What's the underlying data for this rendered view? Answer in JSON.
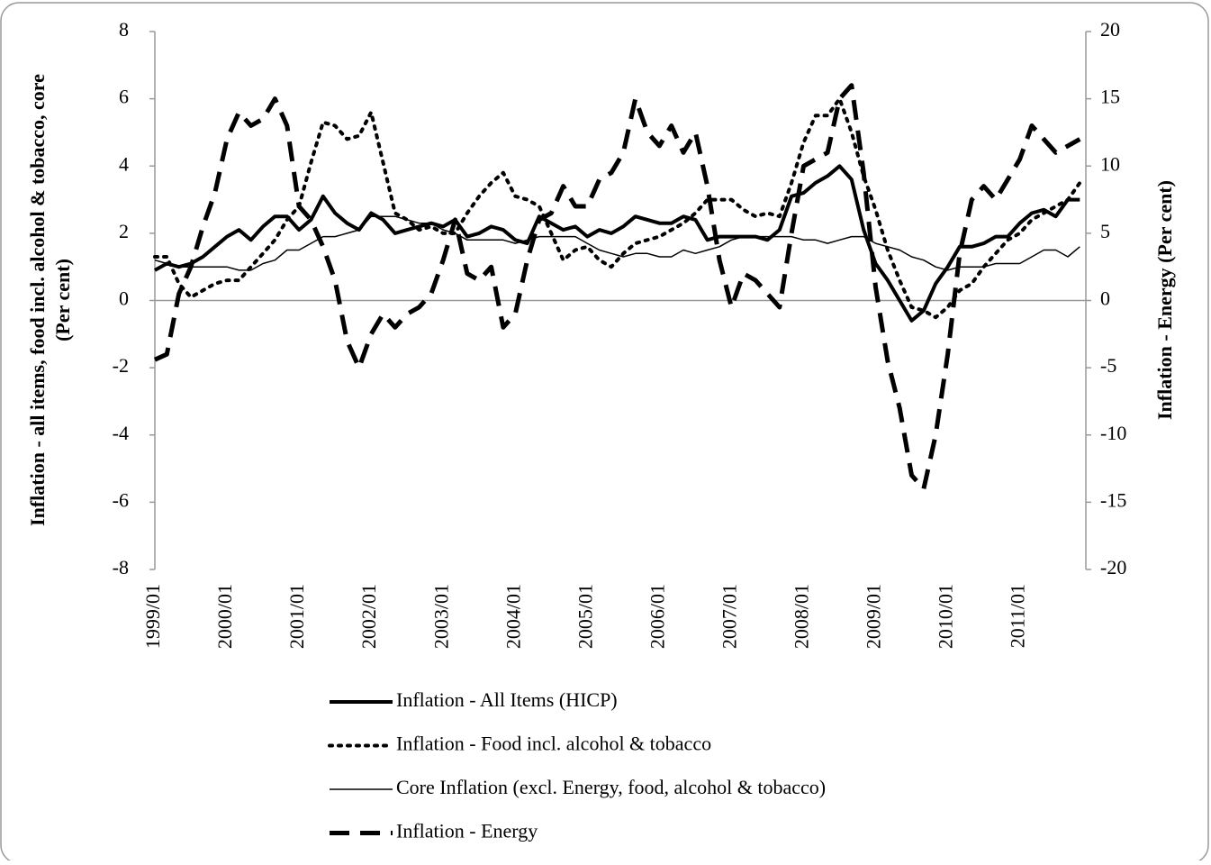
{
  "chart_data": {
    "type": "line",
    "ylabel": [
      "Inflation - all items, food incl. alcohol & tobacco, core",
      "(Per cent)"
    ],
    "y2label": "Inflation - Energy (Per cent)",
    "categories": [
      "1999/01",
      null,
      null,
      null,
      null,
      null,
      "2000/01",
      null,
      null,
      null,
      null,
      null,
      "2001/01",
      null,
      null,
      null,
      null,
      null,
      "2002/01",
      null,
      null,
      null,
      null,
      null,
      "2003/01",
      null,
      null,
      null,
      null,
      null,
      "2004/01",
      null,
      null,
      null,
      null,
      null,
      "2005/01",
      null,
      null,
      null,
      null,
      null,
      "2006/01",
      null,
      null,
      null,
      null,
      null,
      "2007/01",
      null,
      null,
      null,
      null,
      null,
      "2008/01",
      null,
      null,
      null,
      null,
      null,
      "2009/01",
      null,
      null,
      null,
      null,
      null,
      "2010/01",
      null,
      null,
      null,
      null,
      null,
      "2011/01",
      null,
      null,
      null,
      null,
      null
    ],
    "ylim": [
      -8,
      8
    ],
    "yticks": [
      -8,
      -6,
      -4,
      -2,
      0,
      2,
      4,
      6,
      8
    ],
    "y2lim": [
      -20,
      20
    ],
    "y2ticks": [
      -20,
      -15,
      -10,
      -5,
      0,
      5,
      10,
      15,
      20
    ],
    "series": [
      {
        "name": "Inflation - All Items (HICP)",
        "color": "#000000",
        "style": "solid",
        "width": 4,
        "values": [
          0.9,
          1.1,
          1.0,
          1.1,
          1.3,
          1.6,
          1.9,
          2.1,
          1.8,
          2.2,
          2.5,
          2.5,
          2.1,
          2.4,
          3.1,
          2.6,
          2.3,
          2.1,
          2.6,
          2.4,
          2.0,
          2.1,
          2.2,
          2.3,
          2.2,
          2.4,
          1.9,
          2.0,
          2.2,
          2.1,
          1.8,
          1.7,
          2.5,
          2.3,
          2.1,
          2.2,
          1.9,
          2.1,
          2.0,
          2.2,
          2.5,
          2.4,
          2.3,
          2.3,
          2.5,
          2.4,
          1.8,
          1.9,
          1.9,
          1.9,
          1.9,
          1.8,
          2.1,
          3.1,
          3.2,
          3.5,
          3.7,
          4.0,
          3.6,
          2.1,
          1.1,
          0.6,
          0.0,
          -0.6,
          -0.3,
          0.5,
          1.0,
          1.6,
          1.6,
          1.7,
          1.9,
          1.9,
          2.3,
          2.6,
          2.7,
          2.5,
          3.0,
          3.0
        ]
      },
      {
        "name": "Inflation - Food incl. alcohol & tobacco",
        "color": "#000000",
        "style": "dotted",
        "width": 4,
        "values": [
          1.3,
          1.3,
          0.5,
          0.1,
          0.3,
          0.5,
          0.6,
          0.6,
          1.0,
          1.4,
          1.8,
          2.4,
          2.8,
          4.1,
          5.3,
          5.2,
          4.8,
          4.9,
          5.6,
          4.1,
          2.6,
          2.4,
          2.1,
          2.2,
          2.0,
          2.0,
          2.6,
          3.1,
          3.5,
          3.8,
          3.1,
          3.0,
          2.8,
          2.0,
          1.2,
          1.5,
          1.6,
          1.2,
          1.0,
          1.4,
          1.7,
          1.8,
          1.9,
          2.1,
          2.3,
          2.6,
          3.0,
          3.0,
          3.0,
          2.7,
          2.5,
          2.6,
          2.5,
          3.5,
          4.7,
          5.5,
          5.5,
          6.0,
          5.0,
          3.7,
          2.7,
          1.5,
          0.6,
          -0.2,
          -0.3,
          -0.5,
          -0.2,
          0.3,
          0.5,
          1.0,
          1.4,
          1.8,
          2.0,
          2.4,
          2.6,
          2.8,
          3.0,
          3.5
        ]
      },
      {
        "name": "Core Inflation (excl. Energy, food, alcohol & tobacco)",
        "color": "#000000",
        "style": "solid",
        "width": 1.5,
        "values": [
          1.2,
          1.1,
          1.0,
          1.0,
          1.0,
          1.0,
          1.0,
          0.9,
          0.9,
          1.1,
          1.2,
          1.5,
          1.5,
          1.7,
          1.9,
          1.9,
          2.0,
          2.1,
          2.5,
          2.5,
          2.5,
          2.4,
          2.3,
          2.3,
          2.1,
          2.0,
          1.8,
          1.8,
          1.8,
          1.8,
          1.7,
          1.8,
          1.9,
          1.9,
          1.9,
          1.9,
          1.7,
          1.5,
          1.4,
          1.3,
          1.4,
          1.4,
          1.3,
          1.3,
          1.5,
          1.4,
          1.5,
          1.6,
          1.8,
          1.9,
          1.9,
          1.9,
          1.9,
          1.9,
          1.8,
          1.8,
          1.7,
          1.8,
          1.9,
          1.9,
          1.7,
          1.6,
          1.5,
          1.3,
          1.2,
          1.0,
          0.9,
          1.0,
          1.0,
          1.0,
          1.1,
          1.1,
          1.1,
          1.3,
          1.5,
          1.5,
          1.3,
          1.6
        ]
      },
      {
        "name": "Inflation - Energy",
        "color": "#000000",
        "style": "dashed",
        "width": 5,
        "axis": "y2",
        "values": [
          -4.4,
          -4.0,
          0.5,
          2.5,
          5.5,
          8.0,
          12.0,
          14.0,
          13.0,
          13.5,
          15.0,
          13.0,
          7.0,
          6.0,
          4.0,
          1.5,
          -3.0,
          -5.0,
          -2.5,
          -1.0,
          -2.0,
          -1.0,
          -0.5,
          0.5,
          3.0,
          6.0,
          2.0,
          1.5,
          2.5,
          -2.0,
          -1.0,
          3.0,
          6.0,
          6.5,
          8.5,
          7.0,
          7.0,
          9.0,
          9.5,
          11.0,
          15.0,
          12.5,
          11.5,
          13.0,
          11.0,
          12.5,
          8.5,
          3.0,
          -0.5,
          2.0,
          1.5,
          0.5,
          -0.5,
          5.0,
          10.0,
          10.5,
          11.0,
          15.0,
          16.0,
          9.5,
          1.0,
          -4.5,
          -8.0,
          -13.0,
          -14.0,
          -10.0,
          -4.0,
          3.5,
          7.5,
          8.5,
          7.5,
          9.0,
          10.5,
          13.0,
          12.0,
          11.0,
          11.5,
          12.0
        ]
      }
    ]
  }
}
